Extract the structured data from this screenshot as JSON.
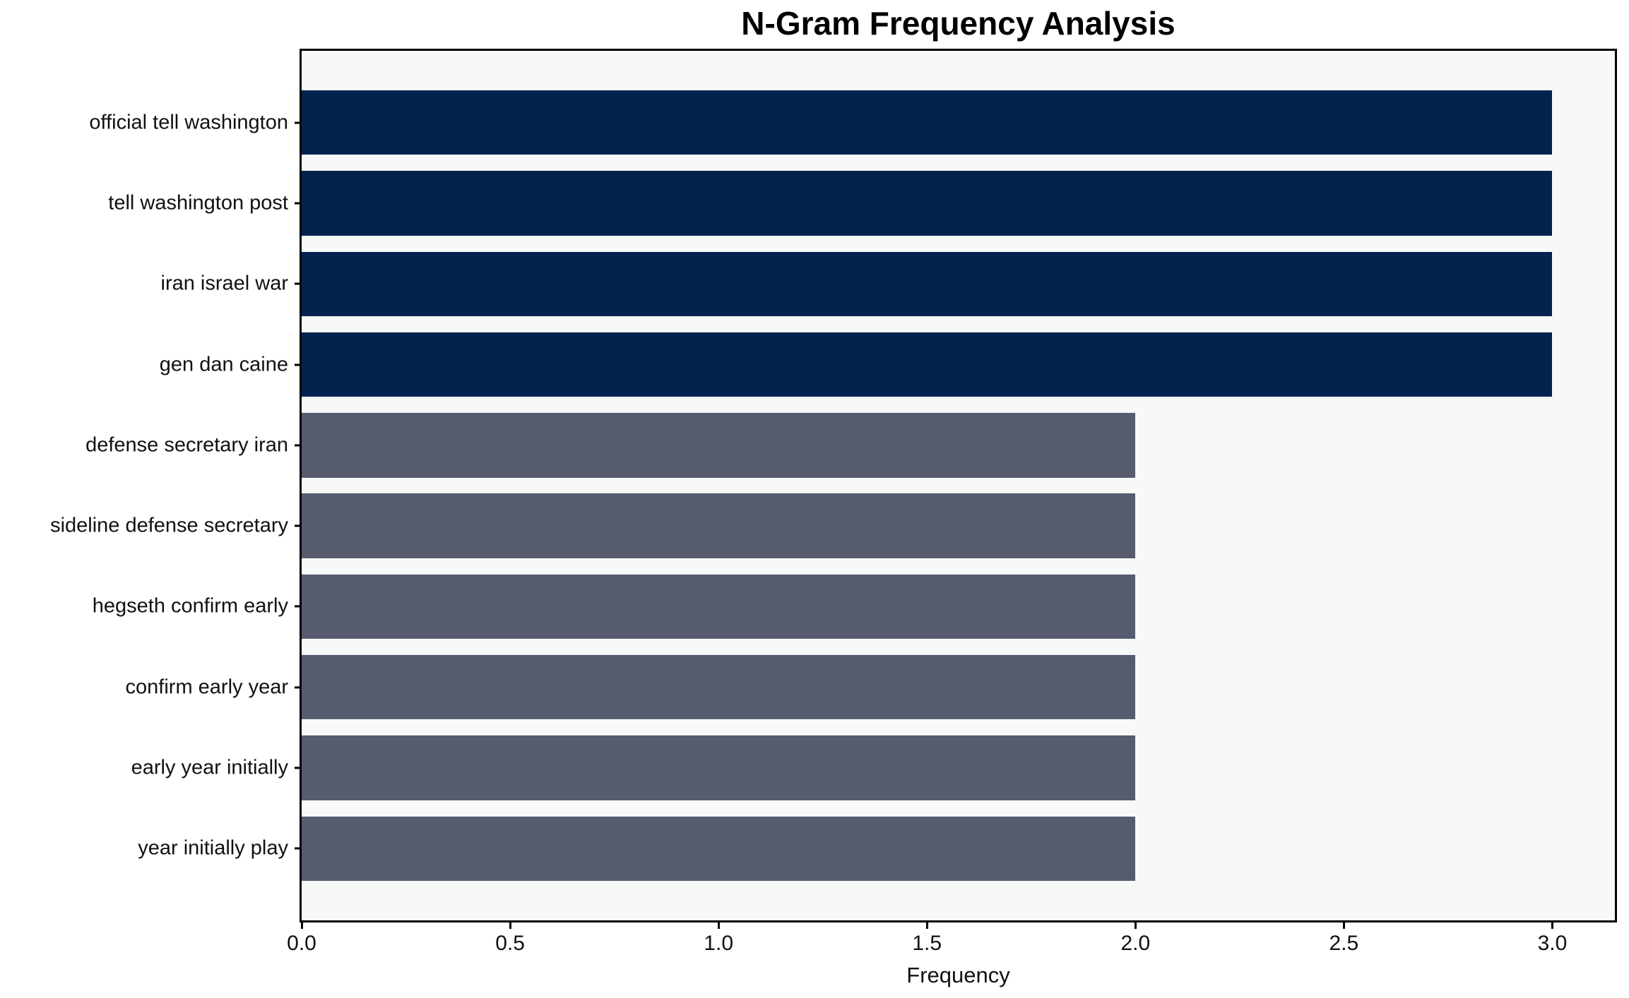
{
  "chart_data": {
    "type": "bar",
    "orientation": "horizontal",
    "title": "N-Gram Frequency Analysis",
    "xlabel": "Frequency",
    "ylabel": "",
    "categories": [
      "official tell washington",
      "tell washington post",
      "iran israel war",
      "gen dan caine",
      "defense secretary iran",
      "sideline defense secretary",
      "hegseth confirm early",
      "confirm early year",
      "early year initially",
      "year initially play"
    ],
    "values": [
      3,
      3,
      3,
      3,
      2,
      2,
      2,
      2,
      2,
      2
    ],
    "bar_colors": [
      "#02234d",
      "#02234d",
      "#02234d",
      "#02234d",
      "#565c6e",
      "#565c6e",
      "#565c6e",
      "#565c6e",
      "#565c6e",
      "#565c6e"
    ],
    "xticks": [
      "0.0",
      "0.5",
      "1.0",
      "1.5",
      "2.0",
      "2.5",
      "3.0"
    ],
    "xtick_values": [
      0,
      0.5,
      1,
      1.5,
      2,
      2.5,
      3
    ],
    "xlim": [
      0,
      3.15
    ],
    "grid": false,
    "legend_position": "none",
    "plot_background": "#f7f8f8",
    "figure_background": "#ffffff",
    "accent_colors": {
      "high_frequency_bar": "#02234d",
      "low_frequency_bar": "#565c6e"
    }
  }
}
